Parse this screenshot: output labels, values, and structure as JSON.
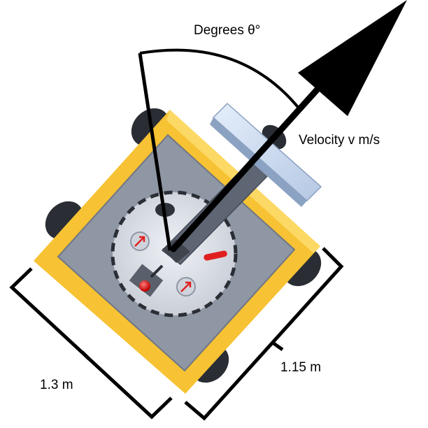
{
  "labels": {
    "angle": "Degrees θ°",
    "velocity": "Velocity v m/s",
    "width_dim": "1.3 m",
    "length_dim": "1.15 m"
  },
  "colors": {
    "frame": "#f7c233",
    "frame_light": "#fde27a",
    "deck": "#8f96a4",
    "turret": "#dde2ea",
    "arm": "#5e6674",
    "paddle": "#c9d9ef",
    "wheel": "#2a2d33",
    "accent_red": "#e02020"
  },
  "icons": {
    "arrow": "velocity-arrow-icon",
    "ball": "red-ball-icon"
  }
}
